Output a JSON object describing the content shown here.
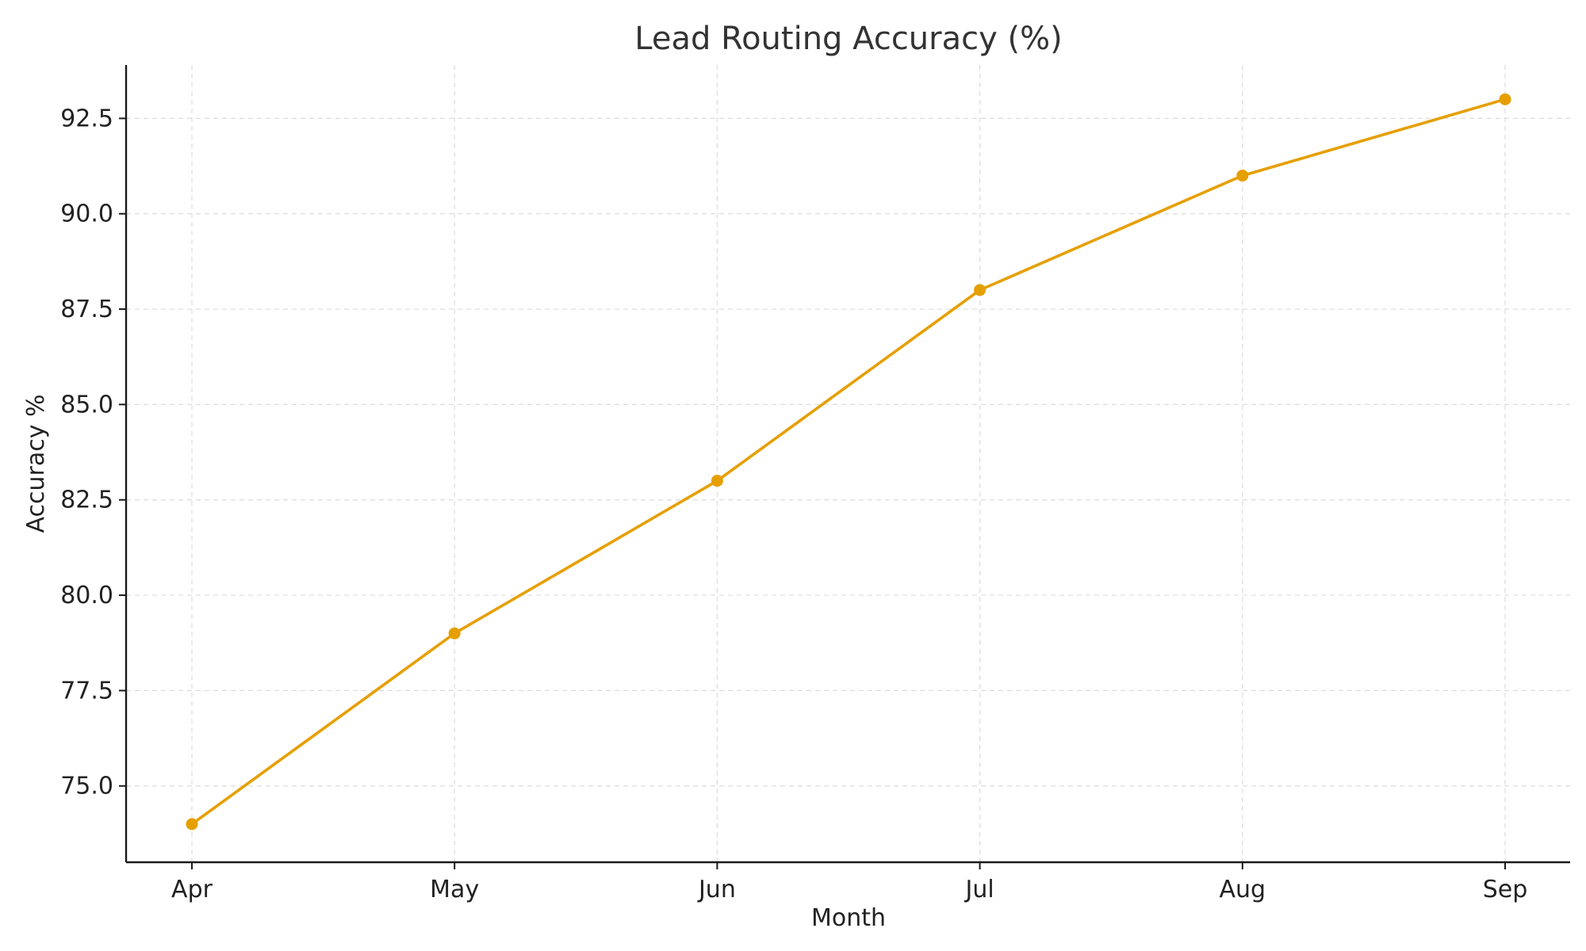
{
  "chart_data": {
    "type": "line",
    "title": "Lead Routing Accuracy (%)",
    "xlabel": "Month",
    "ylabel": "Accuracy %",
    "categories": [
      "Apr",
      "May",
      "Jun",
      "Jul",
      "Aug",
      "Sep"
    ],
    "series": [
      {
        "values": [
          74.0,
          79.0,
          83.0,
          88.0,
          91.0,
          93.0
        ],
        "color": "#E69F00"
      }
    ],
    "ylim": [
      73.0,
      93.9
    ],
    "yticks": [
      75.0,
      77.5,
      80.0,
      82.5,
      85.0,
      87.5,
      90.0,
      92.5
    ],
    "ytick_labels": [
      "75.0",
      "77.5",
      "80.0",
      "82.5",
      "85.0",
      "87.5",
      "90.0",
      "92.5"
    ],
    "grid": true,
    "legend": "none"
  }
}
